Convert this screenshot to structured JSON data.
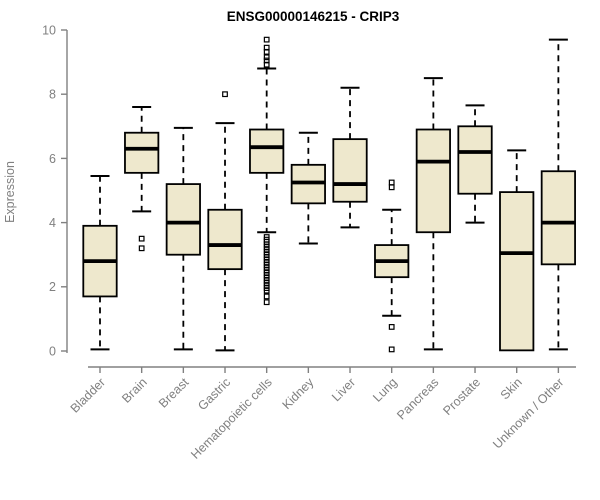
{
  "chart_data": {
    "type": "boxplot",
    "title": "ENSG00000146215 - CRIP3",
    "ylabel": "Expression",
    "xlabel": "",
    "ylim": [
      0,
      10
    ],
    "yticks": [
      0,
      2,
      4,
      6,
      8,
      10
    ],
    "grid": false,
    "legend": "none",
    "colors": {
      "box_fill": "#EEE8CD",
      "box_stroke": "#000000",
      "median": "#000000",
      "axis": "#808080",
      "tick_text": "#808080",
      "title_text": "#000000",
      "background": "#ffffff"
    },
    "categories": [
      "Bladder",
      "Brain",
      "Breast",
      "Gastric",
      "Hematopoietic cells",
      "Kidney",
      "Liver",
      "Lung",
      "Pancreas",
      "Prostate",
      "Skin",
      "Unknown / Other"
    ],
    "series": [
      {
        "category": "Bladder",
        "whisker_low": 0.05,
        "q1": 1.7,
        "median": 2.8,
        "q3": 3.9,
        "whisker_high": 5.45,
        "outliers": []
      },
      {
        "category": "Brain",
        "whisker_low": 4.35,
        "q1": 5.55,
        "median": 6.3,
        "q3": 6.8,
        "whisker_high": 7.6,
        "outliers": [
          3.5,
          3.2
        ]
      },
      {
        "category": "Breast",
        "whisker_low": 0.05,
        "q1": 3.0,
        "median": 4.0,
        "q3": 5.2,
        "whisker_high": 6.95,
        "outliers": []
      },
      {
        "category": "Gastric",
        "whisker_low": 0.02,
        "q1": 2.55,
        "median": 3.3,
        "q3": 4.4,
        "whisker_high": 7.1,
        "outliers": [
          8.0
        ]
      },
      {
        "category": "Hematopoietic cells",
        "whisker_low": 3.7,
        "q1": 5.55,
        "median": 6.35,
        "q3": 6.9,
        "whisker_high": 8.8,
        "outliers": [
          9.7,
          9.45,
          9.32,
          9.15,
          9.05,
          8.92,
          3.55,
          3.47,
          3.4,
          3.32,
          3.24,
          3.16,
          3.08,
          3.0,
          2.92,
          2.84,
          2.76,
          2.68,
          2.6,
          2.52,
          2.44,
          2.36,
          2.28,
          2.2,
          2.12,
          2.04,
          1.96,
          1.88,
          1.7,
          1.52
        ]
      },
      {
        "category": "Kidney",
        "whisker_low": 3.35,
        "q1": 4.6,
        "median": 5.25,
        "q3": 5.8,
        "whisker_high": 6.8,
        "outliers": []
      },
      {
        "category": "Liver",
        "whisker_low": 3.85,
        "q1": 4.65,
        "median": 5.2,
        "q3": 6.6,
        "whisker_high": 8.2,
        "outliers": []
      },
      {
        "category": "Lung",
        "whisker_low": 1.1,
        "q1": 2.3,
        "median": 2.8,
        "q3": 3.3,
        "whisker_high": 4.4,
        "outliers": [
          5.25,
          5.1,
          0.75,
          0.05
        ]
      },
      {
        "category": "Pancreas",
        "whisker_low": 0.05,
        "q1": 3.7,
        "median": 5.9,
        "q3": 6.9,
        "whisker_high": 8.5,
        "outliers": []
      },
      {
        "category": "Prostate",
        "whisker_low": 4.0,
        "q1": 4.9,
        "median": 6.2,
        "q3": 7.0,
        "whisker_high": 7.65,
        "outliers": []
      },
      {
        "category": "Skin",
        "whisker_low": 0.02,
        "q1": 0.02,
        "median": 3.05,
        "q3": 4.95,
        "whisker_high": 6.25,
        "outliers": []
      },
      {
        "category": "Unknown / Other",
        "whisker_low": 0.05,
        "q1": 2.7,
        "median": 4.0,
        "q3": 5.6,
        "whisker_high": 9.7,
        "outliers": []
      }
    ]
  }
}
